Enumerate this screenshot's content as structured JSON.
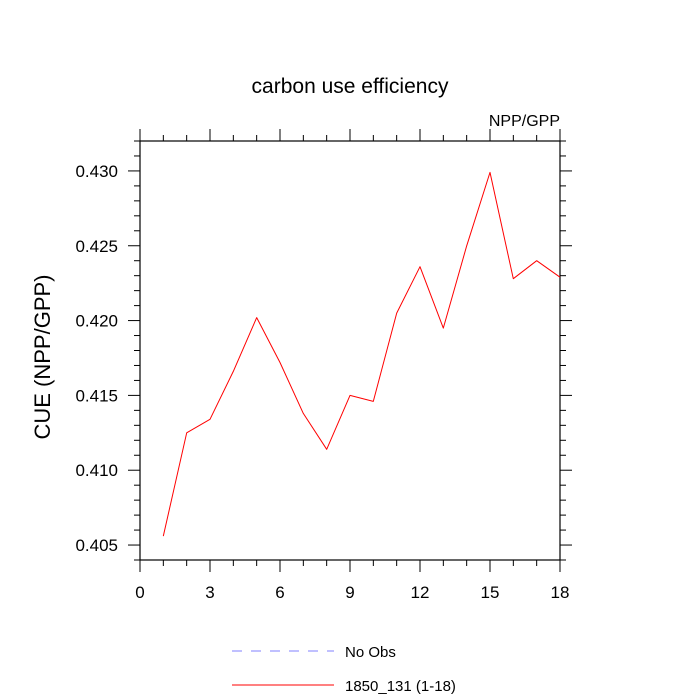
{
  "chart_data": {
    "type": "line",
    "title": "carbon use efficiency",
    "subtitle": "NPP/GPP",
    "xlabel": "",
    "ylabel": "CUE  (NPP/GPP)",
    "xlim": [
      0,
      18
    ],
    "ylim": [
      0.404,
      0.432
    ],
    "x_ticks": [
      0,
      3,
      6,
      9,
      12,
      15,
      18
    ],
    "x_tick_labels": [
      "0",
      "3",
      "6",
      "9",
      "12",
      "15",
      "18"
    ],
    "y_ticks": [
      0.405,
      0.41,
      0.415,
      0.42,
      0.425,
      0.43
    ],
    "y_tick_labels": [
      "0.405",
      "0.410",
      "0.415",
      "0.420",
      "0.425",
      "0.430"
    ],
    "grid": false,
    "legend_position": "bottom",
    "series": [
      {
        "name": "1850_131 (1-18)",
        "color": "#ff0000",
        "style": "solid",
        "x": [
          1,
          2,
          3,
          4,
          5,
          6,
          7,
          8,
          9,
          10,
          11,
          12,
          13,
          14,
          15,
          16,
          17,
          18
        ],
        "y": [
          0.4056,
          0.4125,
          0.4134,
          0.4166,
          0.4202,
          0.4172,
          0.4138,
          0.4114,
          0.415,
          0.4146,
          0.4205,
          0.4236,
          0.4195,
          0.425,
          0.4299,
          0.4228,
          0.424,
          0.4229
        ]
      }
    ],
    "legend": [
      {
        "label": "No Obs",
        "color": "#8080ff",
        "style": "dashed"
      },
      {
        "label": "1850_131 (1-18)",
        "color": "#ff0000",
        "style": "solid"
      }
    ]
  }
}
